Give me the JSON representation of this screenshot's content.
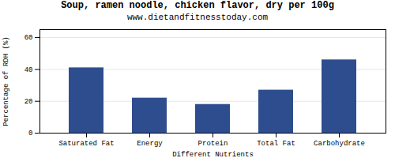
{
  "chart_data": {
    "type": "bar",
    "title": "Soup, ramen noodle, chicken flavor, dry per 100g",
    "subtitle": "www.dietandfitnesstoday.com",
    "categories": [
      "Saturated Fat",
      "Energy",
      "Protein",
      "Total Fat",
      "Carbohydrate"
    ],
    "values": [
      41,
      22,
      18,
      27,
      46
    ],
    "color": "#2e4d8e",
    "xlabel": "Different Nutrients",
    "ylabel": "Percentage of RDH (%)",
    "ylim": [
      0,
      65
    ],
    "yticks": [
      0,
      20,
      40,
      60
    ],
    "grid": true
  }
}
